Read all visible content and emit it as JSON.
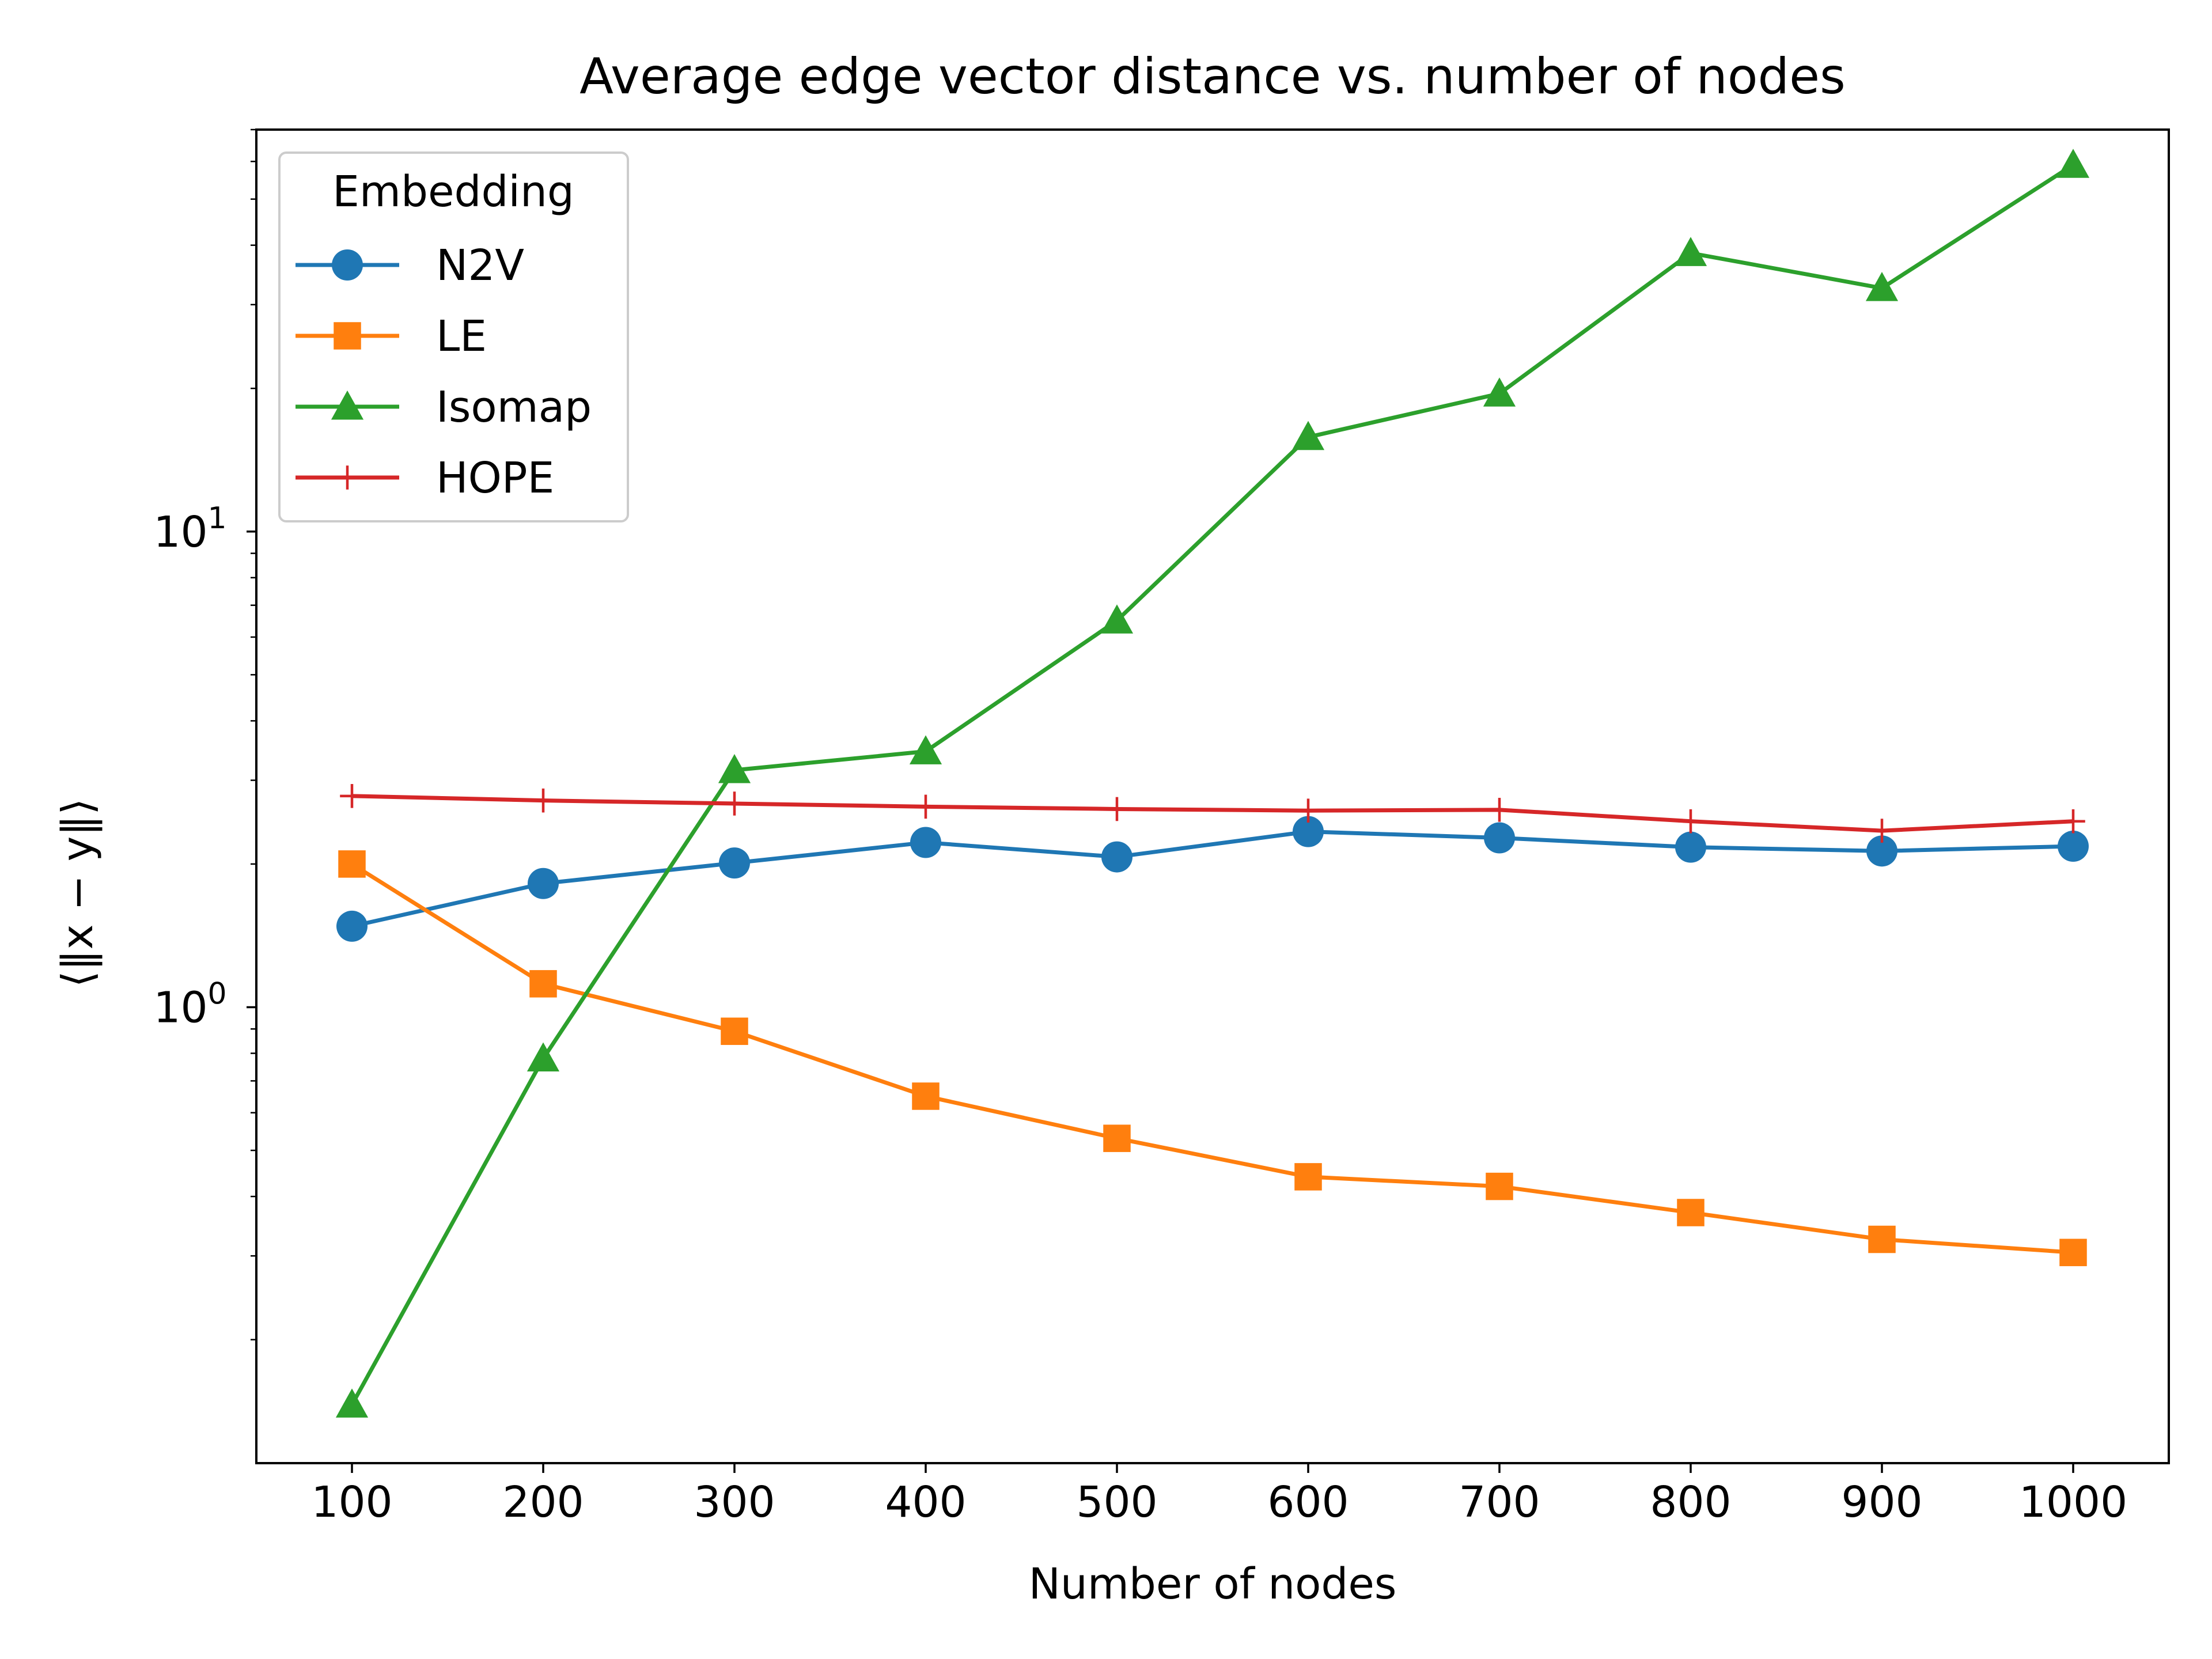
{
  "chart_data": {
    "type": "line",
    "title": "Average edge vector distance vs. number of nodes",
    "xlabel": "Number of nodes",
    "ylabel": "⟨‖x − y‖⟩",
    "yscale": "log",
    "xlim": [
      50,
      1050
    ],
    "ylim": [
      0.11,
      70
    ],
    "grid": false,
    "x": [
      100,
      200,
      300,
      400,
      500,
      600,
      700,
      800,
      900,
      1000
    ],
    "x_ticks": [
      "100",
      "200",
      "300",
      "400",
      "500",
      "600",
      "700",
      "800",
      "900",
      "1000"
    ],
    "y_ticks": [
      {
        "value": 1,
        "base": "10",
        "exp": "0"
      },
      {
        "value": 10,
        "base": "10",
        "exp": "1"
      }
    ],
    "legend": {
      "title": "Embedding",
      "placement": "upper-left"
    },
    "series": [
      {
        "name": "N2V",
        "color": "#1f77b4",
        "marker": "circle",
        "values": [
          1.48,
          1.82,
          2.01,
          2.22,
          2.07,
          2.34,
          2.27,
          2.17,
          2.13,
          2.18
        ]
      },
      {
        "name": "LE",
        "color": "#ff7f0e",
        "marker": "square",
        "values": [
          2.0,
          1.12,
          0.89,
          0.65,
          0.53,
          0.44,
          0.42,
          0.37,
          0.325,
          0.305
        ]
      },
      {
        "name": "Isomap",
        "color": "#2ca02c",
        "marker": "triangle",
        "values": [
          0.146,
          0.78,
          3.15,
          3.45,
          6.5,
          15.8,
          19.5,
          38.5,
          32.5,
          59.0
        ]
      },
      {
        "name": "HOPE",
        "color": "#d62728",
        "marker": "plus",
        "values": [
          2.78,
          2.72,
          2.68,
          2.64,
          2.61,
          2.59,
          2.6,
          2.46,
          2.35,
          2.46
        ]
      }
    ]
  }
}
